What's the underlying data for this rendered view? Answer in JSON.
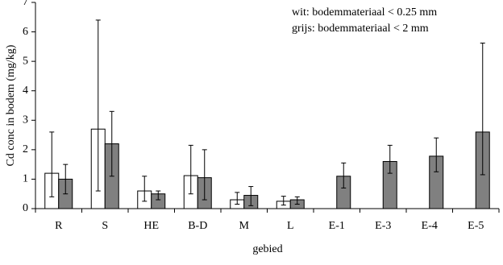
{
  "chart_data": {
    "type": "bar",
    "x_label": "gebied",
    "y_label": "Cd conc in bodem (mg/kg)",
    "categories": [
      "R",
      "S",
      "HE",
      "B-D",
      "M",
      "L",
      "E-1",
      "E-3",
      "E-4",
      "E-5"
    ],
    "series": [
      {
        "name": "wit: bodemmateriaal < 0.25 mm",
        "color": "#ffffff",
        "values": [
          1.2,
          2.7,
          0.6,
          1.12,
          0.3,
          0.25,
          null,
          null,
          null,
          null
        ],
        "error_low": [
          0.4,
          0.6,
          0.25,
          0.5,
          0.15,
          0.12,
          null,
          null,
          null,
          null
        ],
        "error_high": [
          2.6,
          6.4,
          1.1,
          2.15,
          0.55,
          0.42,
          null,
          null,
          null,
          null
        ]
      },
      {
        "name": "grijs: bodemmateriaal < 2 mm",
        "color": "#808080",
        "values": [
          1.0,
          2.2,
          0.5,
          1.05,
          0.45,
          0.3,
          1.1,
          1.6,
          1.78,
          2.6
        ],
        "error_low": [
          0.5,
          1.1,
          0.3,
          0.3,
          0.1,
          0.15,
          0.7,
          1.2,
          1.25,
          1.15
        ],
        "error_high": [
          1.5,
          3.3,
          0.6,
          2.0,
          0.75,
          0.4,
          1.55,
          2.15,
          2.4,
          5.62
        ]
      }
    ],
    "ylim": [
      0,
      7
    ],
    "yticks": [
      0,
      1,
      2,
      3,
      4,
      5,
      6,
      7
    ],
    "grid": false
  }
}
